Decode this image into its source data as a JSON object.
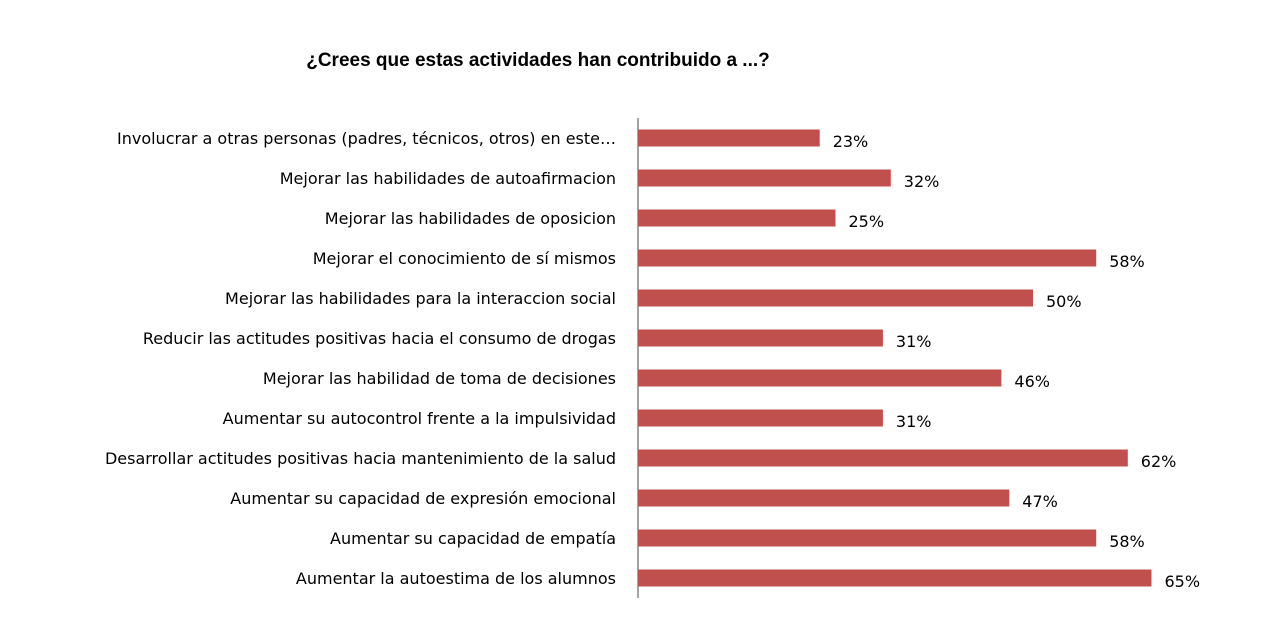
{
  "chart_data": {
    "type": "bar",
    "orientation": "horizontal",
    "title": "¿Crees que estas actividades han contribuido a ...?",
    "bar_color": "#c0504d",
    "value_suffix": "%",
    "categories": [
      "Involucrar a otras personas (padres, técnicos, otros) en este…",
      "Mejorar las habilidades de autoafirmacion",
      "Mejorar las habilidades de oposicion",
      "Mejorar el conocimiento de sí mismos",
      "Mejorar las habilidades para la interaccion social",
      "Reducir las actitudes positivas hacia el consumo de drogas",
      "Mejorar las habilidad de toma de decisiones",
      "Aumentar su autocontrol frente a la impulsividad",
      "Desarrollar actitudes positivas hacia mantenimiento de la salud",
      "Aumentar su capacidad de expresión emocional",
      "Aumentar su capacidad de empatía",
      "Aumentar la autoestima de los alumnos"
    ],
    "values": [
      23,
      32,
      25,
      58,
      50,
      31,
      46,
      31,
      62,
      47,
      58,
      65
    ],
    "xlim": [
      0,
      100
    ],
    "grid": false,
    "legend": "none"
  }
}
